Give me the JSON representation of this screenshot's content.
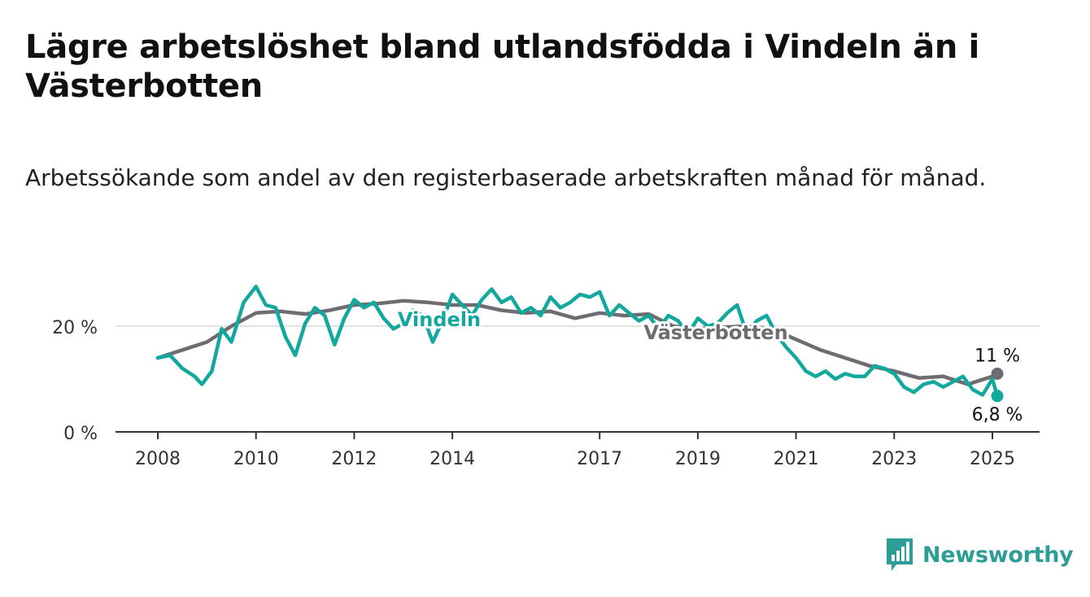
{
  "title": "Lägre arbetslöshet bland utlandsfödda i Vindeln än i Västerbotten",
  "subtitle": "Arbetssökande som andel av den registerbaserade arbetskraften månad för månad.",
  "brand": {
    "name": "Newsworthy",
    "color": "#2d9e95",
    "icon": "newsworthy-chat-chart-icon"
  },
  "chart_data": {
    "type": "line",
    "title": "Lägre arbetslöshet bland utlandsfödda i Vindeln än i Västerbotten",
    "subtitle": "Arbetssökande som andel av den registerbaserade arbetskraften månad för månad.",
    "xlabel": "",
    "ylabel": "",
    "y_unit": "%",
    "ylim": [
      0,
      30
    ],
    "xlim": [
      2008.0,
      2025.2
    ],
    "x_ticks": [
      2008,
      2010,
      2012,
      2014,
      2017,
      2019,
      2021,
      2023,
      2025
    ],
    "x_tick_labels": [
      "2008",
      "2010",
      "2012",
      "2014",
      "2017",
      "2019",
      "2021",
      "2023",
      "2025"
    ],
    "y_ticks": [
      0,
      20
    ],
    "y_tick_labels": [
      "0 %",
      "20 %"
    ],
    "grid": "horizontal",
    "legend": "direct labels on lines",
    "series": [
      {
        "name": "Västerbotten",
        "color": "#6e6c71",
        "end_label": "11 %",
        "x": [
          2008.0,
          2008.5,
          2009.0,
          2009.5,
          2010.0,
          2010.5,
          2011.0,
          2011.5,
          2012.0,
          2012.5,
          2013.0,
          2013.5,
          2014.0,
          2014.5,
          2015.0,
          2015.5,
          2016.0,
          2016.5,
          2017.0,
          2017.5,
          2018.0,
          2018.5,
          2019.0,
          2019.5,
          2020.0,
          2020.5,
          2021.0,
          2021.5,
          2022.0,
          2022.5,
          2023.0,
          2023.5,
          2024.0,
          2024.5,
          2025.0,
          2025.1
        ],
        "y": [
          14.0,
          15.5,
          17.0,
          20.0,
          22.5,
          22.8,
          22.3,
          23.0,
          24.0,
          24.3,
          24.8,
          24.5,
          24.0,
          24.0,
          23.0,
          22.5,
          22.8,
          21.5,
          22.5,
          22.0,
          22.3,
          20.0,
          19.5,
          19.8,
          20.0,
          19.5,
          17.5,
          15.5,
          14.0,
          12.5,
          11.5,
          10.2,
          10.5,
          9.0,
          10.5,
          11.0
        ]
      },
      {
        "name": "Vindeln",
        "color": "#13a89e",
        "end_label": "6,8 %",
        "x": [
          2008.0,
          2008.25,
          2008.5,
          2008.75,
          2008.9,
          2009.1,
          2009.3,
          2009.5,
          2009.75,
          2010.0,
          2010.2,
          2010.4,
          2010.6,
          2010.8,
          2011.0,
          2011.2,
          2011.4,
          2011.6,
          2011.8,
          2012.0,
          2012.2,
          2012.4,
          2012.6,
          2012.8,
          2013.0,
          2013.2,
          2013.4,
          2013.6,
          2013.8,
          2014.0,
          2014.2,
          2014.4,
          2014.6,
          2014.8,
          2015.0,
          2015.2,
          2015.4,
          2015.6,
          2015.8,
          2016.0,
          2016.2,
          2016.4,
          2016.6,
          2016.8,
          2017.0,
          2017.2,
          2017.4,
          2017.6,
          2017.8,
          2018.0,
          2018.2,
          2018.4,
          2018.6,
          2018.8,
          2019.0,
          2019.2,
          2019.4,
          2019.6,
          2019.8,
          2020.0,
          2020.2,
          2020.4,
          2020.6,
          2020.8,
          2021.0,
          2021.2,
          2021.4,
          2021.6,
          2021.8,
          2022.0,
          2022.2,
          2022.4,
          2022.6,
          2022.8,
          2023.0,
          2023.2,
          2023.4,
          2023.6,
          2023.8,
          2024.0,
          2024.2,
          2024.4,
          2024.6,
          2024.8,
          2025.0,
          2025.1
        ],
        "y": [
          14.0,
          14.5,
          12.0,
          10.5,
          9.0,
          11.5,
          19.5,
          17.0,
          24.5,
          27.5,
          24.0,
          23.5,
          18.0,
          14.5,
          20.5,
          23.5,
          22.0,
          16.5,
          21.5,
          25.0,
          23.5,
          24.5,
          21.5,
          19.5,
          20.5,
          23.0,
          22.0,
          17.0,
          21.0,
          26.0,
          24.0,
          22.0,
          25.0,
          27.0,
          24.5,
          25.5,
          22.5,
          23.5,
          22.0,
          25.5,
          23.5,
          24.5,
          26.0,
          25.5,
          26.5,
          22.0,
          24.0,
          22.5,
          21.0,
          22.0,
          19.5,
          22.0,
          21.0,
          18.5,
          21.5,
          20.0,
          20.5,
          22.5,
          24.0,
          18.5,
          21.0,
          22.0,
          18.5,
          16.0,
          14.0,
          11.5,
          10.5,
          11.5,
          10.0,
          11.0,
          10.5,
          10.5,
          12.5,
          12.0,
          11.0,
          8.5,
          7.5,
          9.0,
          9.5,
          8.5,
          9.5,
          10.5,
          8.0,
          7.0,
          10.0,
          6.8
        ]
      }
    ]
  }
}
